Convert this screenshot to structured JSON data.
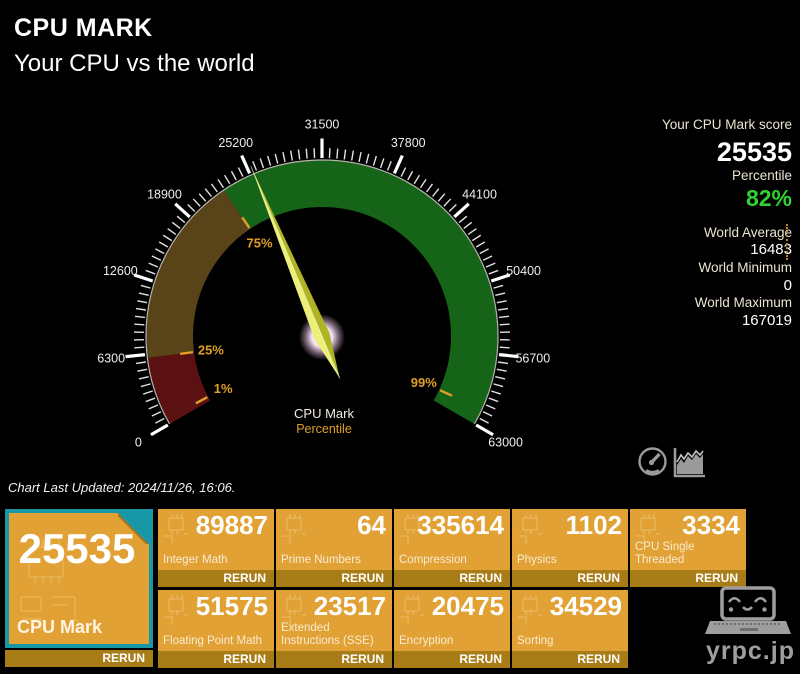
{
  "header": {
    "title": "CPU MARK",
    "subtitle": "Your CPU vs the world"
  },
  "score_panel": {
    "score_label": "Your CPU Mark score",
    "score_value": "25535",
    "percentile_label": "Percentile",
    "percentile_value": "82%",
    "stats": [
      {
        "label": "World Average",
        "value": "16483"
      },
      {
        "label": "World Minimum",
        "value": "0"
      },
      {
        "label": "World Maximum",
        "value": "167019"
      }
    ]
  },
  "footer_note": "Chart Last Updated: 2024/11/26, 16:06.",
  "view_toggle": {
    "gauge_icon": "speedometer-icon",
    "chart_icon": "area-chart-icon"
  },
  "watermark": {
    "text": "yrpc.jp",
    "icon": "laptop-face-icon"
  },
  "results": {
    "rerun_label": "RERUN",
    "main_tile": {
      "value": "25535",
      "label": "CPU Mark"
    },
    "rows": [
      [
        {
          "value": "89887",
          "label": "Integer Math"
        },
        {
          "value": "64",
          "label": "Prime Numbers"
        },
        {
          "value": "335614",
          "label": "Compression"
        },
        {
          "value": "1102",
          "label": "Physics"
        },
        {
          "value": "3334",
          "label": "CPU Single Threaded"
        }
      ],
      [
        {
          "value": "51575",
          "label": "Floating Point Math"
        },
        {
          "value": "23517",
          "label": "Extended Instructions (SSE)"
        },
        {
          "value": "20475",
          "label": "Encryption"
        },
        {
          "value": "34529",
          "label": "Sorting"
        }
      ]
    ]
  },
  "chart_data": {
    "type": "gauge",
    "title": "CPU Mark",
    "subtitle": "Percentile",
    "min": 0,
    "max": 63000,
    "value": 25535,
    "start_angle": 210,
    "end_angle": -30,
    "major_tick_step": 6300,
    "minor_tick_step": 630,
    "tick_labels": [
      0,
      6300,
      12600,
      18900,
      25200,
      31500,
      37800,
      44100,
      50400,
      56700,
      63000
    ],
    "bands": [
      {
        "name": "low-percentile-band",
        "from": 0,
        "to": 6000,
        "color": "#5b1111"
      },
      {
        "name": "mid-percentile-band",
        "from": 6000,
        "to": 22600,
        "color": "#594319"
      },
      {
        "name": "high-percentile-band",
        "from": 22600,
        "to": 63000,
        "color": "#166418"
      }
    ],
    "percentile_markers": [
      {
        "label": "1%",
        "value": 500
      },
      {
        "label": "25%",
        "value": 6000
      },
      {
        "label": "75%",
        "value": 22600
      },
      {
        "label": "99%",
        "value": 61600
      }
    ],
    "needle_color": "#d8dd4a",
    "marker_color": "#e09f26",
    "tick_color": "#ffffff"
  },
  "colors": {
    "tile_orange": "#e1a134",
    "rerun_strip": "#a87d18",
    "tile_border_teal": "#1898a6",
    "percentile_green": "#2fd433",
    "watermark_gray": "#9e9e9e"
  }
}
